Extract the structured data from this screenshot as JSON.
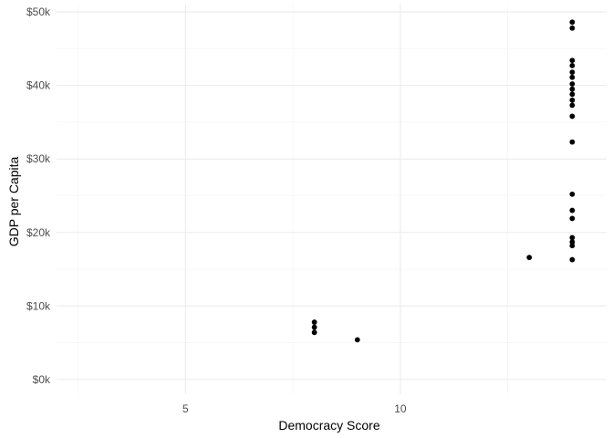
{
  "chart_data": {
    "type": "scatter",
    "title": "",
    "xlabel": "Democracy Score",
    "ylabel": "GDP per Capita",
    "xlim": [
      2.0,
      14.8
    ],
    "ylim": [
      -2000,
      51000
    ],
    "x_ticks": [
      5,
      10
    ],
    "x_minor_ticks": [
      2.5,
      7.5,
      12.5
    ],
    "y_ticks": [
      0,
      10000,
      20000,
      30000,
      40000,
      50000
    ],
    "y_tick_labels": [
      "$0k",
      "$10k",
      "$20k",
      "$30k",
      "$40k",
      "$50k"
    ],
    "y_minor_ticks": [
      5000,
      15000,
      25000,
      35000,
      45000
    ],
    "grid": true,
    "legend": "none",
    "point_color": "#000000",
    "series": [
      {
        "points": [
          {
            "x": 8,
            "y": 7800
          },
          {
            "x": 8,
            "y": 7100
          },
          {
            "x": 8,
            "y": 6400
          },
          {
            "x": 9,
            "y": 5400
          },
          {
            "x": 13,
            "y": 16600
          },
          {
            "x": 14,
            "y": 48600
          },
          {
            "x": 14,
            "y": 47800
          },
          {
            "x": 14,
            "y": 43400
          },
          {
            "x": 14,
            "y": 42700
          },
          {
            "x": 14,
            "y": 41800
          },
          {
            "x": 14,
            "y": 41100
          },
          {
            "x": 14,
            "y": 40200
          },
          {
            "x": 14,
            "y": 39500
          },
          {
            "x": 14,
            "y": 38800
          },
          {
            "x": 14,
            "y": 38000
          },
          {
            "x": 14,
            "y": 37300
          },
          {
            "x": 14,
            "y": 35800
          },
          {
            "x": 14,
            "y": 32300
          },
          {
            "x": 14,
            "y": 25200
          },
          {
            "x": 14,
            "y": 23000
          },
          {
            "x": 14,
            "y": 21900
          },
          {
            "x": 14,
            "y": 19300
          },
          {
            "x": 14,
            "y": 18700
          },
          {
            "x": 14,
            "y": 18200
          },
          {
            "x": 14,
            "y": 16300
          }
        ]
      }
    ]
  }
}
